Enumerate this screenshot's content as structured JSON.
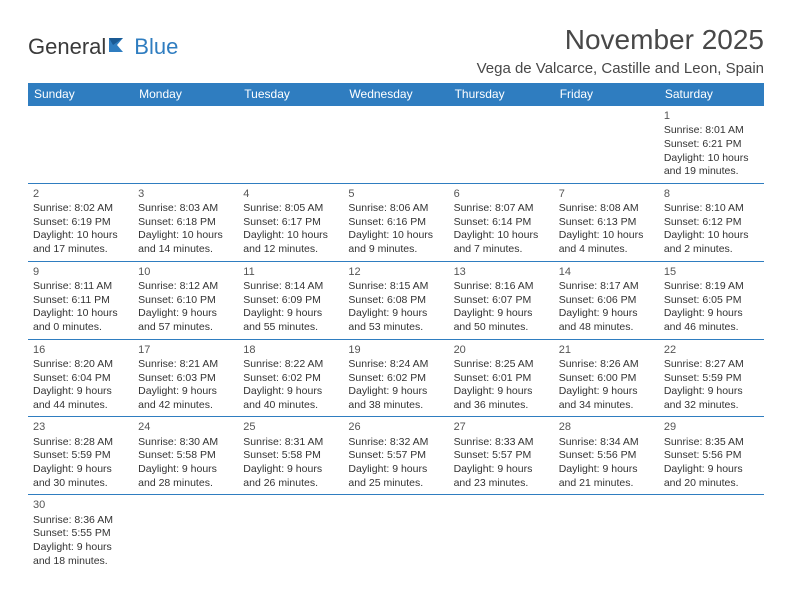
{
  "logo": {
    "part1": "General",
    "part2": "Blue"
  },
  "title": "November 2025",
  "location": "Vega de Valcarce, Castille and Leon, Spain",
  "colors": {
    "header_bg": "#2f7dc0",
    "header_text": "#ffffff",
    "border": "#2f7dc0",
    "text": "#333333",
    "title_text": "#484848"
  },
  "daynames": [
    "Sunday",
    "Monday",
    "Tuesday",
    "Wednesday",
    "Thursday",
    "Friday",
    "Saturday"
  ],
  "weeks": [
    [
      null,
      null,
      null,
      null,
      null,
      null,
      {
        "n": "1",
        "sr": "8:01 AM",
        "ss": "6:21 PM",
        "dl": "10 hours and 19 minutes."
      }
    ],
    [
      {
        "n": "2",
        "sr": "8:02 AM",
        "ss": "6:19 PM",
        "dl": "10 hours and 17 minutes."
      },
      {
        "n": "3",
        "sr": "8:03 AM",
        "ss": "6:18 PM",
        "dl": "10 hours and 14 minutes."
      },
      {
        "n": "4",
        "sr": "8:05 AM",
        "ss": "6:17 PM",
        "dl": "10 hours and 12 minutes."
      },
      {
        "n": "5",
        "sr": "8:06 AM",
        "ss": "6:16 PM",
        "dl": "10 hours and 9 minutes."
      },
      {
        "n": "6",
        "sr": "8:07 AM",
        "ss": "6:14 PM",
        "dl": "10 hours and 7 minutes."
      },
      {
        "n": "7",
        "sr": "8:08 AM",
        "ss": "6:13 PM",
        "dl": "10 hours and 4 minutes."
      },
      {
        "n": "8",
        "sr": "8:10 AM",
        "ss": "6:12 PM",
        "dl": "10 hours and 2 minutes."
      }
    ],
    [
      {
        "n": "9",
        "sr": "8:11 AM",
        "ss": "6:11 PM",
        "dl": "10 hours and 0 minutes."
      },
      {
        "n": "10",
        "sr": "8:12 AM",
        "ss": "6:10 PM",
        "dl": "9 hours and 57 minutes."
      },
      {
        "n": "11",
        "sr": "8:14 AM",
        "ss": "6:09 PM",
        "dl": "9 hours and 55 minutes."
      },
      {
        "n": "12",
        "sr": "8:15 AM",
        "ss": "6:08 PM",
        "dl": "9 hours and 53 minutes."
      },
      {
        "n": "13",
        "sr": "8:16 AM",
        "ss": "6:07 PM",
        "dl": "9 hours and 50 minutes."
      },
      {
        "n": "14",
        "sr": "8:17 AM",
        "ss": "6:06 PM",
        "dl": "9 hours and 48 minutes."
      },
      {
        "n": "15",
        "sr": "8:19 AM",
        "ss": "6:05 PM",
        "dl": "9 hours and 46 minutes."
      }
    ],
    [
      {
        "n": "16",
        "sr": "8:20 AM",
        "ss": "6:04 PM",
        "dl": "9 hours and 44 minutes."
      },
      {
        "n": "17",
        "sr": "8:21 AM",
        "ss": "6:03 PM",
        "dl": "9 hours and 42 minutes."
      },
      {
        "n": "18",
        "sr": "8:22 AM",
        "ss": "6:02 PM",
        "dl": "9 hours and 40 minutes."
      },
      {
        "n": "19",
        "sr": "8:24 AM",
        "ss": "6:02 PM",
        "dl": "9 hours and 38 minutes."
      },
      {
        "n": "20",
        "sr": "8:25 AM",
        "ss": "6:01 PM",
        "dl": "9 hours and 36 minutes."
      },
      {
        "n": "21",
        "sr": "8:26 AM",
        "ss": "6:00 PM",
        "dl": "9 hours and 34 minutes."
      },
      {
        "n": "22",
        "sr": "8:27 AM",
        "ss": "5:59 PM",
        "dl": "9 hours and 32 minutes."
      }
    ],
    [
      {
        "n": "23",
        "sr": "8:28 AM",
        "ss": "5:59 PM",
        "dl": "9 hours and 30 minutes."
      },
      {
        "n": "24",
        "sr": "8:30 AM",
        "ss": "5:58 PM",
        "dl": "9 hours and 28 minutes."
      },
      {
        "n": "25",
        "sr": "8:31 AM",
        "ss": "5:58 PM",
        "dl": "9 hours and 26 minutes."
      },
      {
        "n": "26",
        "sr": "8:32 AM",
        "ss": "5:57 PM",
        "dl": "9 hours and 25 minutes."
      },
      {
        "n": "27",
        "sr": "8:33 AM",
        "ss": "5:57 PM",
        "dl": "9 hours and 23 minutes."
      },
      {
        "n": "28",
        "sr": "8:34 AM",
        "ss": "5:56 PM",
        "dl": "9 hours and 21 minutes."
      },
      {
        "n": "29",
        "sr": "8:35 AM",
        "ss": "5:56 PM",
        "dl": "9 hours and 20 minutes."
      }
    ],
    [
      {
        "n": "30",
        "sr": "8:36 AM",
        "ss": "5:55 PM",
        "dl": "9 hours and 18 minutes."
      },
      null,
      null,
      null,
      null,
      null,
      null
    ]
  ],
  "labels": {
    "sunrise": "Sunrise:",
    "sunset": "Sunset:",
    "daylight": "Daylight:"
  }
}
